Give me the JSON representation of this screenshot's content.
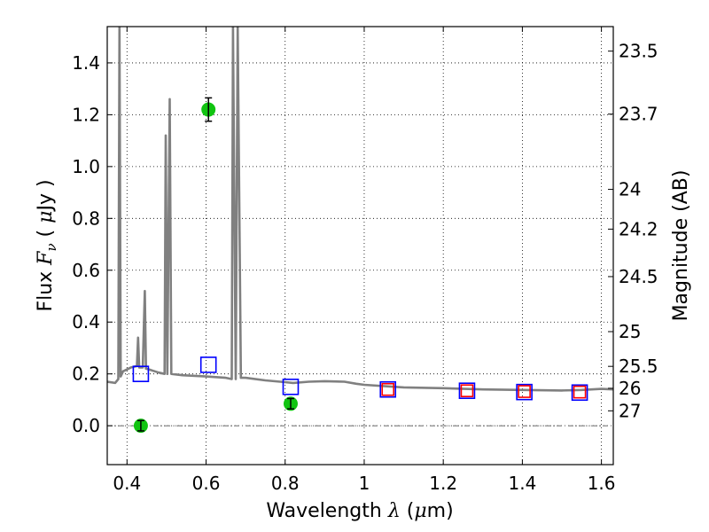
{
  "chart_data": {
    "type": "scatter",
    "xlabel": "Wavelength  λ (μm)",
    "ylabel": "Flux  Fν  ( μJy )",
    "y2label": "Magnitude (AB)",
    "xlim": [
      0.35,
      1.63
    ],
    "ylim": [
      -0.15,
      1.54
    ],
    "x_ticks": [
      0.4,
      0.6,
      0.8,
      1.0,
      1.2,
      1.4,
      1.6
    ],
    "x_tick_labels": [
      "0.4",
      "0.6",
      "0.8",
      "1",
      "1.2",
      "1.4",
      "1.6"
    ],
    "y_ticks": [
      0.0,
      0.2,
      0.4,
      0.6,
      0.8,
      1.0,
      1.2,
      1.4
    ],
    "y_tick_labels": [
      "0.0",
      "0.2",
      "0.4",
      "0.6",
      "0.8",
      "1.0",
      "1.2",
      "1.4"
    ],
    "y2_ticks": [
      {
        "label": "23.5",
        "flux": 1.4454
      },
      {
        "label": "23.7",
        "flux": 1.2023
      },
      {
        "label": "24",
        "flux": 0.912
      },
      {
        "label": "24.2",
        "flux": 0.7586
      },
      {
        "label": "24.5",
        "flux": 0.5754
      },
      {
        "label": "25",
        "flux": 0.3631
      },
      {
        "label": "25.5",
        "flux": 0.2291
      },
      {
        "label": "26",
        "flux": 0.1445
      },
      {
        "label": "27",
        "flux": 0.0575
      }
    ],
    "grid": true,
    "zero_line": true,
    "colors": {
      "spectrum": "#808080",
      "green_points": "#11c411",
      "blue_squares": "#0000ff",
      "red_squares": "#ff0000"
    },
    "series": [
      {
        "kind": "line",
        "color": "#808080",
        "points": [
          [
            0.35,
            0.17
          ],
          [
            0.37,
            0.165
          ],
          [
            0.378,
            0.18
          ],
          [
            0.381,
            1.54
          ],
          [
            0.384,
            0.19
          ],
          [
            0.39,
            0.21
          ],
          [
            0.41,
            0.225
          ],
          [
            0.425,
            0.23
          ],
          [
            0.428,
            0.34
          ],
          [
            0.431,
            0.225
          ],
          [
            0.44,
            0.225
          ],
          [
            0.445,
            0.52
          ],
          [
            0.448,
            0.22
          ],
          [
            0.46,
            0.215
          ],
          [
            0.48,
            0.205
          ],
          [
            0.495,
            0.2
          ],
          [
            0.498,
            1.12
          ],
          [
            0.502,
            0.2
          ],
          [
            0.508,
            1.26
          ],
          [
            0.512,
            0.2
          ],
          [
            0.54,
            0.195
          ],
          [
            0.6,
            0.19
          ],
          [
            0.65,
            0.185
          ],
          [
            0.665,
            0.18
          ],
          [
            0.668,
            1.54
          ],
          [
            0.675,
            0.18
          ],
          [
            0.68,
            1.54
          ],
          [
            0.688,
            0.185
          ],
          [
            0.7,
            0.185
          ],
          [
            0.75,
            0.175
          ],
          [
            0.8,
            0.168
          ],
          [
            0.82,
            0.165
          ],
          [
            0.86,
            0.17
          ],
          [
            0.9,
            0.172
          ],
          [
            0.95,
            0.17
          ],
          [
            0.98,
            0.162
          ],
          [
            1.0,
            0.158
          ],
          [
            1.1,
            0.148
          ],
          [
            1.2,
            0.145
          ],
          [
            1.3,
            0.14
          ],
          [
            1.4,
            0.138
          ],
          [
            1.5,
            0.136
          ],
          [
            1.55,
            0.138
          ],
          [
            1.6,
            0.142
          ],
          [
            1.63,
            0.14
          ]
        ]
      },
      {
        "kind": "points_with_errorbars",
        "color": "#11c411",
        "points": [
          {
            "x": 0.435,
            "y": 0.0,
            "err": 0.02
          },
          {
            "x": 0.606,
            "y": 1.22,
            "err": 0.045
          },
          {
            "x": 0.814,
            "y": 0.085,
            "err": 0.02
          }
        ]
      },
      {
        "kind": "open_squares",
        "color": "#0000ff",
        "points": [
          {
            "x": 0.435,
            "y": 0.2
          },
          {
            "x": 0.606,
            "y": 0.235
          },
          {
            "x": 0.814,
            "y": 0.15
          },
          {
            "x": 1.06,
            "y": 0.14
          },
          {
            "x": 1.26,
            "y": 0.135
          },
          {
            "x": 1.405,
            "y": 0.13
          },
          {
            "x": 1.545,
            "y": 0.128
          }
        ]
      },
      {
        "kind": "open_squares",
        "color": "#ff0000",
        "points": [
          {
            "x": 1.06,
            "y": 0.14
          },
          {
            "x": 1.26,
            "y": 0.135
          },
          {
            "x": 1.405,
            "y": 0.132
          },
          {
            "x": 1.545,
            "y": 0.13
          }
        ]
      }
    ]
  }
}
